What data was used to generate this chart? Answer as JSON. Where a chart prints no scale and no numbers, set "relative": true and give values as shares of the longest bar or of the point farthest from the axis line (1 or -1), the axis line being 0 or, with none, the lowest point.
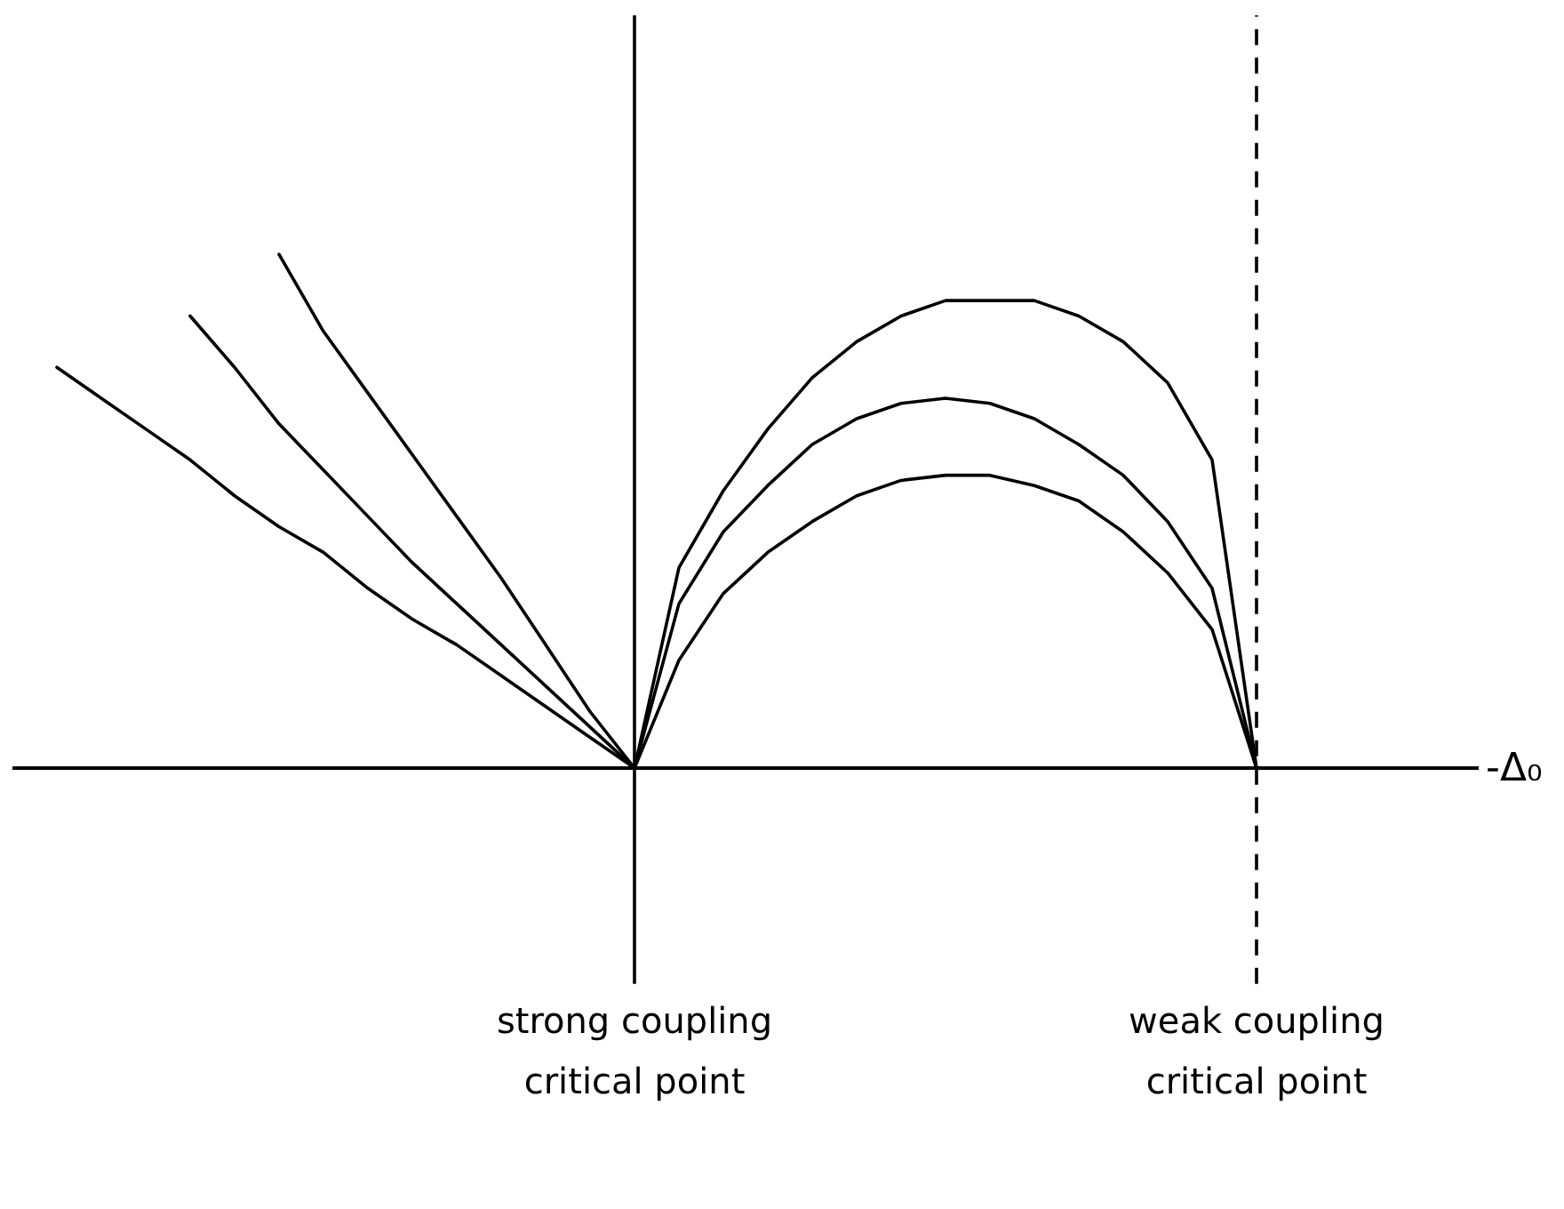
{
  "chart_data": {
    "type": "line",
    "relative": true,
    "xlabel": "-Δ₀",
    "categories": [
      null,
      null,
      null,
      null,
      null,
      null,
      null,
      null,
      null,
      null,
      null,
      null,
      null,
      null,
      null,
      null,
      null,
      null,
      null,
      null,
      null,
      null,
      null,
      null,
      null,
      null,
      null,
      null,
      null,
      null,
      null,
      null,
      null,
      null
    ],
    "series": [
      {
        "color": "#000000",
        "values": [
          null,
          0.78,
          0.72,
          0.66,
          0.6,
          0.53,
          0.47,
          0.42,
          0.35,
          0.29,
          0.24,
          0.18,
          0.12,
          0.06,
          0,
          0.21,
          0.34,
          0.42,
          0.48,
          0.53,
          0.56,
          0.57,
          0.57,
          0.55,
          0.52,
          0.46,
          0.38,
          0.27,
          0,
          null,
          null,
          null,
          null,
          null
        ]
      },
      {
        "color": "#000000",
        "values": [
          null,
          null,
          null,
          null,
          0.88,
          0.78,
          0.67,
          0.58,
          0.49,
          0.4,
          0.32,
          0.24,
          0.16,
          0.08,
          0,
          0.32,
          0.46,
          0.55,
          0.63,
          0.68,
          0.71,
          0.72,
          0.71,
          0.68,
          0.63,
          0.57,
          0.48,
          0.35,
          0,
          null,
          null,
          null,
          null,
          null
        ]
      },
      {
        "color": "#000000",
        "values": [
          null,
          null,
          null,
          null,
          null,
          null,
          1,
          0.85,
          0.73,
          0.61,
          0.49,
          0.37,
          0.24,
          0.11,
          0,
          0.39,
          0.54,
          0.66,
          0.76,
          0.83,
          0.88,
          0.91,
          0.91,
          0.91,
          0.88,
          0.83,
          0.75,
          0.6,
          0,
          null,
          null,
          null,
          null,
          null
        ]
      }
    ],
    "annotations": [
      "strong coupling\ncritical point",
      "weak coupling\ncritical point"
    ]
  }
}
